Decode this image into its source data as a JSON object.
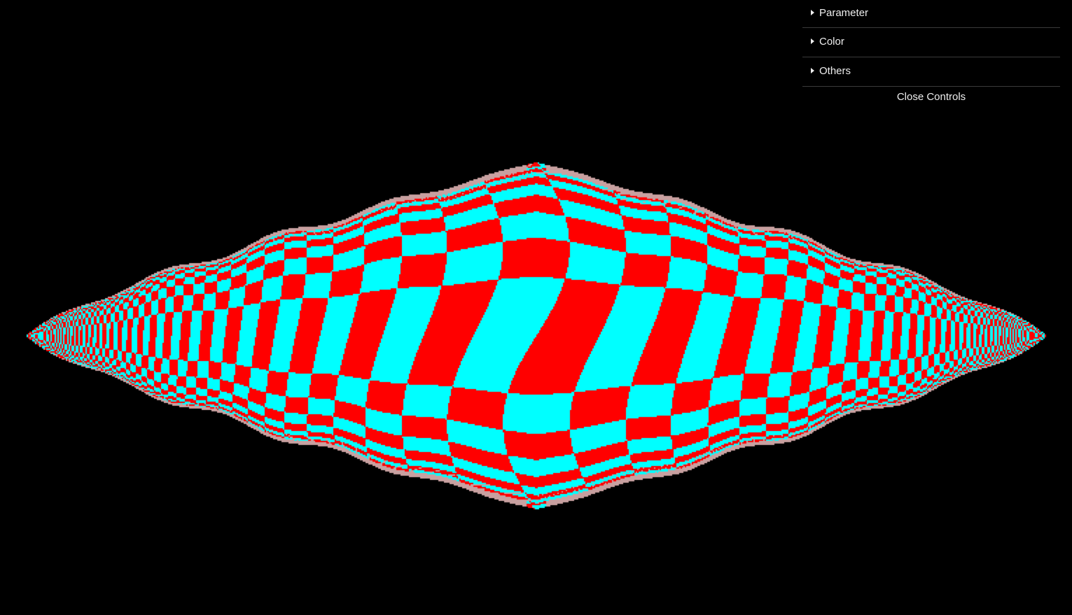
{
  "controls": {
    "folders": [
      {
        "label": "Parameter"
      },
      {
        "label": "Color"
      },
      {
        "label": "Others"
      }
    ],
    "close_label": "Close Controls"
  },
  "canvas": {
    "background": "#000000",
    "color_a": "#ff0000",
    "color_b": "#00ffff",
    "edge_color": "#c8a0a0"
  }
}
